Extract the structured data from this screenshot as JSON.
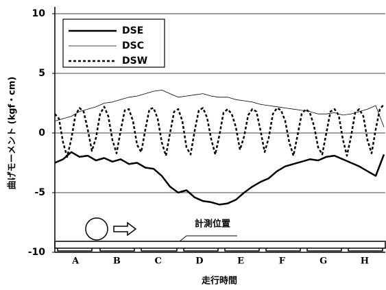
{
  "chart_data": {
    "type": "line",
    "ylabel": "曲げモーメント (kgf・cm)",
    "xlabel": "走行時間",
    "annotation": "計測位置",
    "sections": [
      "A",
      "B",
      "C",
      "D",
      "E",
      "F",
      "G",
      "H"
    ],
    "ylim": [
      -10,
      10
    ],
    "yticks": [
      -10,
      -5,
      0,
      5,
      10
    ],
    "grid": true,
    "legend": "upper left",
    "series": [
      {
        "name": "DSE",
        "color": "#000000",
        "width": 2.5,
        "style": "solid",
        "values": [
          -2.5,
          -2.2,
          -1.6,
          -2.0,
          -1.9,
          -2.3,
          -2.1,
          -2.4,
          -2.2,
          -2.6,
          -2.5,
          -2.9,
          -3.0,
          -3.6,
          -4.5,
          -5.0,
          -4.8,
          -5.4,
          -5.7,
          -5.8,
          -6.0,
          -5.9,
          -5.6,
          -5.0,
          -4.5,
          -4.1,
          -3.8,
          -3.2,
          -2.8,
          -2.6,
          -2.4,
          -2.2,
          -2.3,
          -2.0,
          -1.9,
          -2.2,
          -2.5,
          -2.8,
          -3.2,
          -3.6,
          -1.8
        ]
      },
      {
        "name": "DSC",
        "color": "#000000",
        "width": 0.8,
        "style": "solid",
        "values": [
          1.0,
          1.2,
          1.4,
          1.8,
          2.0,
          2.2,
          2.5,
          2.6,
          2.8,
          3.0,
          3.1,
          3.3,
          3.5,
          3.6,
          3.3,
          3.0,
          3.1,
          3.2,
          3.3,
          3.1,
          3.0,
          3.0,
          2.8,
          2.7,
          2.6,
          2.4,
          2.3,
          2.2,
          2.1,
          2.0,
          1.9,
          1.8,
          1.6,
          1.6,
          1.7,
          1.5,
          1.6,
          1.8,
          2.0,
          2.3,
          0.5
        ]
      },
      {
        "name": "DSW",
        "color": "#000000",
        "width": 2.5,
        "style": "dotted",
        "values": [
          1.6,
          1.2,
          -0.8,
          -2.0,
          -0.5,
          1.5,
          2.1,
          1.8,
          0.3,
          -1.5,
          -0.4,
          1.6,
          2.2,
          1.4,
          -0.6,
          -1.7,
          0.2,
          1.9,
          2.0,
          1.0,
          -1.0,
          -1.6,
          0.3,
          2.0,
          2.1,
          1.2,
          -0.8,
          -1.9,
          0.0,
          1.8,
          2.0,
          1.0,
          -1.2,
          -1.8,
          0.2,
          1.9,
          2.1,
          1.3,
          -0.5,
          -1.8,
          -0.2,
          1.7,
          2.0,
          1.6,
          0.5,
          -1.4,
          -0.3,
          1.5,
          2.0,
          1.8,
          0.2,
          -1.6,
          -0.4,
          1.6,
          2.1,
          1.9,
          1.0,
          -0.8,
          -1.9,
          -0.2,
          1.6,
          2.0,
          1.7,
          0.6,
          -1.2,
          -1.8,
          0.0,
          1.8,
          2.0,
          1.5,
          -0.5,
          -1.9,
          -0.3,
          1.7,
          2.0,
          1.4,
          -0.6,
          -1.7,
          0.3,
          2.0,
          2.4
        ]
      }
    ]
  }
}
